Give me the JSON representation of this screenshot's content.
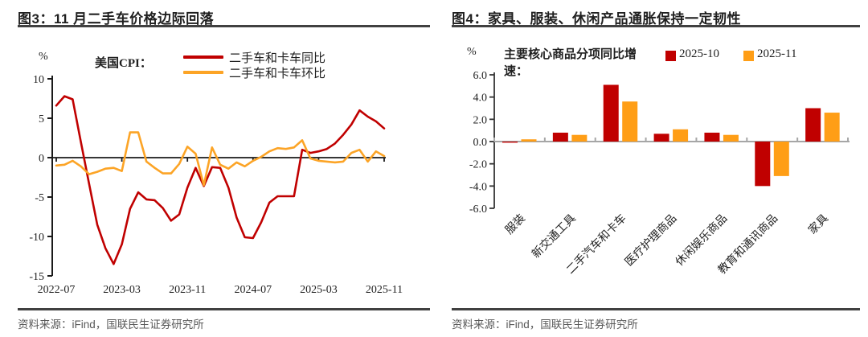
{
  "source_text": "资料来源：iFind，国联民生证券研究所",
  "colors": {
    "red": "#C00000",
    "orange_line": "#FCA426",
    "orange_bar": "#FF9E16",
    "axis_dark": "#1a1a1a",
    "axis_gray": "#A6A6A6",
    "rule": "#404040",
    "text_gray": "#595959"
  },
  "panels": [
    {
      "title": "图3：11 月二手车价格边际回落"
    },
    {
      "title": "图4：家具、服装、休闲产品通胀保持一定韧性"
    }
  ],
  "chart_data": [
    {
      "type": "line",
      "title": "美国CPI：",
      "unit_label": "%",
      "x_start": "2022-07",
      "x_end": "2025-11",
      "x_tick_labels": [
        "2022-07",
        "2023-03",
        "2023-11",
        "2024-07",
        "2025-03",
        "2025-11"
      ],
      "ylim": [
        -15,
        10
      ],
      "y_ticks": [
        10,
        5,
        0,
        -5,
        -10,
        -15
      ],
      "y_tick_labels": [
        "10",
        "5",
        "0",
        "-5",
        "-10",
        "-15"
      ],
      "grid": false,
      "legend_position": "top",
      "series": [
        {
          "name": "二手车和卡车同比",
          "color": "#C00000",
          "values": [
            6.6,
            7.8,
            7.4,
            2.0,
            -3.3,
            -8.5,
            -11.5,
            -13.5,
            -11.0,
            -6.5,
            -4.4,
            -5.3,
            -5.4,
            -6.4,
            -8.0,
            -7.2,
            -3.8,
            -1.3,
            -3.6,
            -1.2,
            -1.3,
            -3.8,
            -7.6,
            -10.1,
            -10.2,
            -8.2,
            -5.7,
            -4.9,
            -4.9,
            -4.9,
            1.0,
            0.6,
            0.8,
            1.1,
            1.8,
            2.9,
            4.2,
            6.0,
            5.2,
            4.6,
            3.7
          ]
        },
        {
          "name": "二手车和卡车环比",
          "color": "#FCA426",
          "values": [
            -1.0,
            -0.9,
            -0.4,
            -1.1,
            -2.1,
            -1.8,
            -1.4,
            -1.3,
            -1.7,
            3.2,
            3.2,
            -0.5,
            -1.3,
            -2.0,
            -2.0,
            -0.8,
            1.4,
            0.5,
            -3.5,
            1.3,
            -0.9,
            -1.4,
            -0.6,
            -1.1,
            -0.4,
            0.1,
            0.8,
            1.2,
            1.1,
            1.3,
            2.2,
            -0.1,
            -0.4,
            -0.5,
            -0.6,
            -0.5,
            0.6,
            1.0,
            -0.5,
            0.8,
            0.2
          ]
        }
      ]
    },
    {
      "type": "bar",
      "title": "主要核心商品分项同比增速：",
      "unit_label": "%",
      "categories": [
        "服装",
        "新交通工具",
        "二手汽车和卡车",
        "医疗护理商品",
        "休闲娱乐商品",
        "教育和通讯商品",
        "家具"
      ],
      "ylim": [
        -6,
        6
      ],
      "y_ticks": [
        6,
        4,
        2,
        0,
        -2,
        -4,
        -6
      ],
      "y_tick_labels": [
        "6.0",
        "4.0",
        "2.0",
        "0.0",
        "-2.0",
        "-4.0",
        "-6.0"
      ],
      "grid": false,
      "legend_position": "top",
      "series": [
        {
          "name": "2025-10",
          "color": "#C00000",
          "values": [
            -0.1,
            0.8,
            5.1,
            0.7,
            0.8,
            -4.0,
            3.0
          ]
        },
        {
          "name": "2025-11",
          "color": "#FF9E16",
          "values": [
            0.2,
            0.6,
            3.6,
            1.1,
            0.6,
            -3.1,
            2.6
          ]
        }
      ]
    }
  ]
}
